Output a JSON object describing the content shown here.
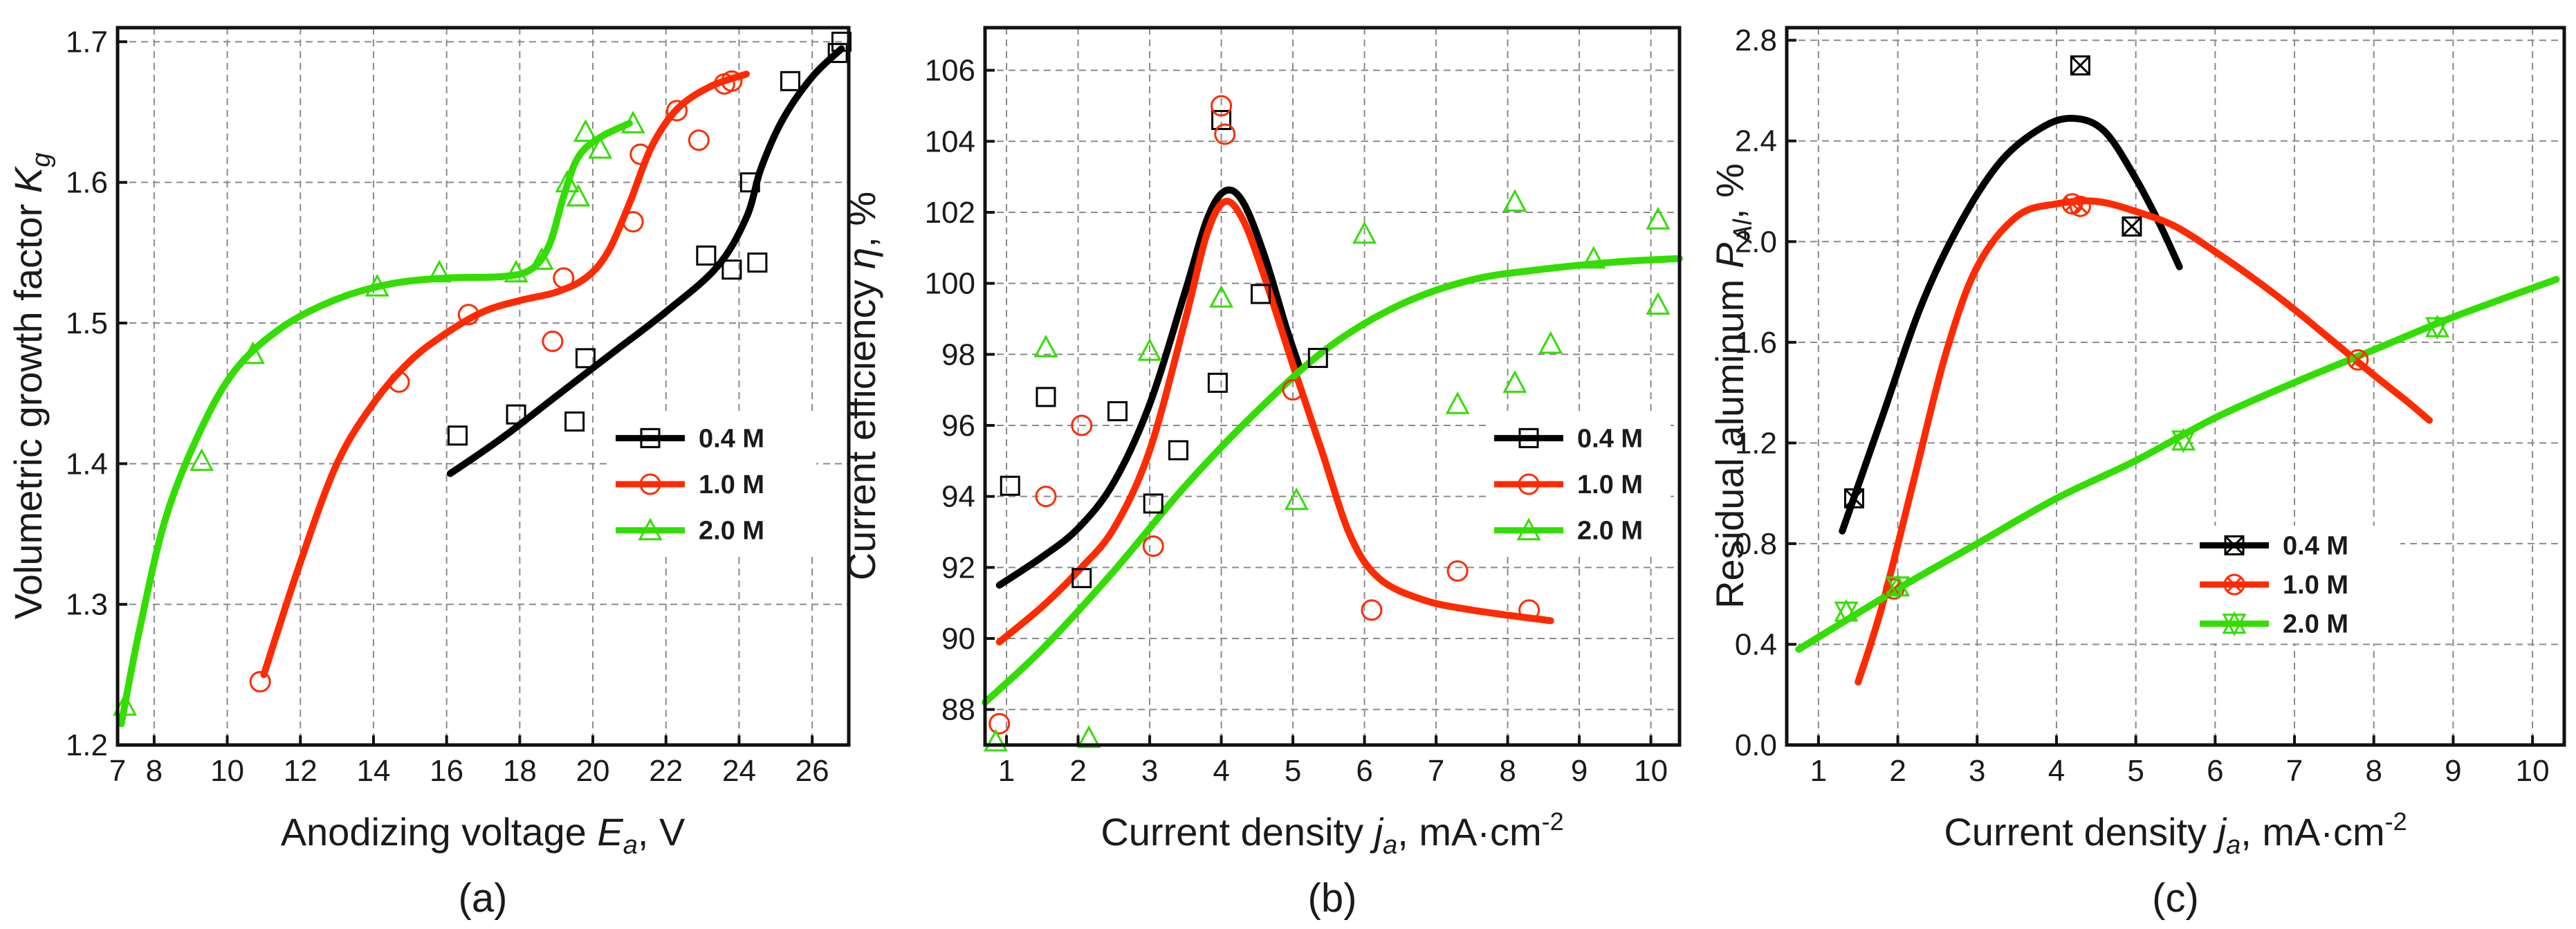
{
  "figure": {
    "captions": [
      "(a)",
      "(b)",
      "(c)"
    ]
  },
  "chart_data": [
    {
      "type": "scatter",
      "panel": "a",
      "caption": "(a)",
      "xlabel": {
        "text": "Anodizing voltage ",
        "var": "E",
        "sub": "a",
        "unit": ", V"
      },
      "ylabel": {
        "text": "Volumetric growth factor ",
        "var": "K",
        "sub": "g",
        "unit": ""
      },
      "xlim": [
        7,
        27
      ],
      "ylim": [
        1.2,
        1.71
      ],
      "xticks": [
        7,
        8,
        10,
        12,
        14,
        16,
        18,
        20,
        22,
        24,
        26
      ],
      "yticks": [
        1.2,
        1.3,
        1.4,
        1.5,
        1.6,
        1.7
      ],
      "ytick_decimals": 1,
      "grid": true,
      "legend_position": "center-right",
      "series": [
        {
          "name": "0.4 M",
          "color": "#000000",
          "marker": "square",
          "points": [
            [
              16.3,
              1.42
            ],
            [
              17.9,
              1.435
            ],
            [
              19.5,
              1.43
            ],
            [
              19.8,
              1.475
            ],
            [
              23.1,
              1.548
            ],
            [
              23.8,
              1.538
            ],
            [
              24.3,
              1.6
            ],
            [
              24.5,
              1.543
            ],
            [
              25.4,
              1.672
            ],
            [
              26.7,
              1.692
            ],
            [
              26.8,
              1.7
            ]
          ],
          "curve": [
            [
              16.1,
              1.393
            ],
            [
              17.5,
              1.418
            ],
            [
              19,
              1.448
            ],
            [
              20.5,
              1.478
            ],
            [
              22,
              1.508
            ],
            [
              23.4,
              1.54
            ],
            [
              24.2,
              1.575
            ],
            [
              24.6,
              1.61
            ],
            [
              25.2,
              1.645
            ],
            [
              26,
              1.675
            ],
            [
              26.8,
              1.695
            ]
          ]
        },
        {
          "name": "1.0 M",
          "color": "#ff2a00",
          "marker": "circle",
          "points": [
            [
              10.9,
              1.245
            ],
            [
              14.7,
              1.458
            ],
            [
              16.6,
              1.506
            ],
            [
              18.9,
              1.487
            ],
            [
              19.2,
              1.532
            ],
            [
              21.1,
              1.572
            ],
            [
              21.3,
              1.62
            ],
            [
              22.3,
              1.651
            ],
            [
              22.9,
              1.63
            ],
            [
              23.6,
              1.67
            ],
            [
              23.8,
              1.672
            ]
          ],
          "curve": [
            [
              11,
              1.25
            ],
            [
              12,
              1.33
            ],
            [
              13,
              1.4
            ],
            [
              14,
              1.443
            ],
            [
              15,
              1.473
            ],
            [
              16,
              1.493
            ],
            [
              17,
              1.508
            ],
            [
              18,
              1.516
            ],
            [
              19,
              1.522
            ],
            [
              19.8,
              1.532
            ],
            [
              20.4,
              1.55
            ],
            [
              21,
              1.585
            ],
            [
              21.6,
              1.625
            ],
            [
              22.3,
              1.652
            ],
            [
              23.2,
              1.668
            ],
            [
              24.2,
              1.677
            ]
          ]
        },
        {
          "name": "2.0 M",
          "color": "#33dd00",
          "marker": "triangle",
          "points": [
            [
              7.2,
              1.228
            ],
            [
              9.3,
              1.402
            ],
            [
              10.7,
              1.478
            ],
            [
              14.1,
              1.526
            ],
            [
              15.8,
              1.536
            ],
            [
              17.9,
              1.536
            ],
            [
              18.6,
              1.545
            ],
            [
              19.3,
              1.6
            ],
            [
              19.6,
              1.59
            ],
            [
              19.8,
              1.636
            ],
            [
              20.2,
              1.624
            ],
            [
              21.1,
              1.642
            ]
          ],
          "curve": [
            [
              7.1,
              1.215
            ],
            [
              7.6,
              1.282
            ],
            [
              8.3,
              1.36
            ],
            [
              9.2,
              1.42
            ],
            [
              10.2,
              1.466
            ],
            [
              11.5,
              1.497
            ],
            [
              13,
              1.517
            ],
            [
              14.5,
              1.528
            ],
            [
              16,
              1.532
            ],
            [
              17.5,
              1.533
            ],
            [
              18.3,
              1.538
            ],
            [
              18.8,
              1.555
            ],
            [
              19.2,
              1.59
            ],
            [
              19.6,
              1.618
            ],
            [
              20.2,
              1.632
            ],
            [
              21,
              1.642
            ]
          ]
        }
      ]
    },
    {
      "type": "scatter",
      "panel": "b",
      "caption": "(b)",
      "xlabel": {
        "text": "Current density ",
        "var": "j",
        "sub": "a",
        "unit": ", mA·cm",
        "sup": "-2"
      },
      "ylabel": {
        "text": "Current efficiency ",
        "var": "η",
        "sub": "",
        "unit": ", %"
      },
      "xlim": [
        0.7,
        10.4
      ],
      "ylim": [
        87,
        107.2
      ],
      "xticks": [
        1,
        2,
        3,
        4,
        5,
        6,
        7,
        8,
        9,
        10
      ],
      "yticks": [
        88,
        90,
        92,
        94,
        96,
        98,
        100,
        102,
        104,
        106
      ],
      "ytick_decimals": 0,
      "grid": true,
      "legend_position": "center-right",
      "series": [
        {
          "name": "0.4 M",
          "color": "#000000",
          "marker": "square",
          "points": [
            [
              1.05,
              94.3
            ],
            [
              1.55,
              96.8
            ],
            [
              2.05,
              91.7
            ],
            [
              2.55,
              96.4
            ],
            [
              3.05,
              93.8
            ],
            [
              3.4,
              95.3
            ],
            [
              3.95,
              97.2
            ],
            [
              4.0,
              104.6
            ],
            [
              4.55,
              99.7
            ],
            [
              5.35,
              97.9
            ]
          ],
          "curve": [
            [
              0.9,
              91.5
            ],
            [
              1.5,
              92.3
            ],
            [
              2,
              93.1
            ],
            [
              2.5,
              94.4
            ],
            [
              3,
              96.6
            ],
            [
              3.5,
              99.8
            ],
            [
              3.8,
              101.8
            ],
            [
              4.05,
              102.6
            ],
            [
              4.3,
              102.3
            ],
            [
              4.6,
              100.8
            ],
            [
              4.9,
              98.8
            ],
            [
              5.1,
              97.6
            ]
          ]
        },
        {
          "name": "1.0 M",
          "color": "#ff2a00",
          "marker": "circle",
          "points": [
            [
              0.9,
              87.6
            ],
            [
              1.55,
              94.0
            ],
            [
              2.05,
              96.0
            ],
            [
              3.05,
              92.6
            ],
            [
              4.0,
              105.0
            ],
            [
              4.05,
              104.2
            ],
            [
              5.0,
              97.0
            ],
            [
              6.1,
              90.8
            ],
            [
              7.3,
              91.9
            ],
            [
              8.3,
              90.8
            ]
          ],
          "curve": [
            [
              0.9,
              89.9
            ],
            [
              1.5,
              90.9
            ],
            [
              2,
              91.9
            ],
            [
              2.5,
              93.1
            ],
            [
              3,
              95.3
            ],
            [
              3.5,
              99
            ],
            [
              3.8,
              101.4
            ],
            [
              4.05,
              102.3
            ],
            [
              4.3,
              101.8
            ],
            [
              4.6,
              100.2
            ],
            [
              5,
              97.7
            ],
            [
              5.4,
              95.3
            ],
            [
              5.8,
              92.9
            ],
            [
              6.2,
              91.7
            ],
            [
              6.8,
              91.1
            ],
            [
              7.5,
              90.8
            ],
            [
              8.6,
              90.5
            ]
          ]
        },
        {
          "name": "2.0 M",
          "color": "#33dd00",
          "marker": "triangle",
          "points": [
            [
              0.85,
              87.1
            ],
            [
              1.55,
              98.2
            ],
            [
              2.15,
              87.2
            ],
            [
              3.0,
              98.1
            ],
            [
              4.0,
              99.6
            ],
            [
              5.05,
              93.9
            ],
            [
              6.0,
              101.4
            ],
            [
              7.3,
              96.6
            ],
            [
              8.1,
              97.2
            ],
            [
              8.1,
              102.3
            ],
            [
              8.6,
              98.3
            ],
            [
              9.2,
              100.7
            ],
            [
              10.1,
              99.4
            ],
            [
              10.1,
              101.8
            ]
          ],
          "curve": [
            [
              0.7,
              88.2
            ],
            [
              1.5,
              89.7
            ],
            [
              2.5,
              91.9
            ],
            [
              3.5,
              94.3
            ],
            [
              4.5,
              96.4
            ],
            [
              5.5,
              98.2
            ],
            [
              6.5,
              99.4
            ],
            [
              7.5,
              100.1
            ],
            [
              8.5,
              100.4
            ],
            [
              9.5,
              100.6
            ],
            [
              10.4,
              100.7
            ]
          ]
        }
      ]
    },
    {
      "type": "scatter",
      "panel": "c",
      "caption": "(c)",
      "xlabel": {
        "text": "Current density ",
        "var": "j",
        "sub": "a",
        "unit": ", mA·cm",
        "sup": "-2"
      },
      "ylabel": {
        "text": "Residual aluminum ",
        "var": "P",
        "sub": "Al",
        "unit": ", %"
      },
      "xlim": [
        0.6,
        10.4
      ],
      "ylim": [
        0,
        2.85
      ],
      "xticks": [
        1,
        2,
        3,
        4,
        5,
        6,
        7,
        8,
        9,
        10
      ],
      "yticks": [
        0.0,
        0.4,
        0.8,
        1.2,
        1.6,
        2.0,
        2.4,
        2.8
      ],
      "ytick_decimals": 1,
      "grid": true,
      "legend_position": "bottom-center",
      "series": [
        {
          "name": "0.4 M",
          "color": "#000000",
          "marker": "square-x",
          "points": [
            [
              1.45,
              0.98
            ],
            [
              4.3,
              2.7
            ],
            [
              4.95,
              2.06
            ]
          ],
          "curve": [
            [
              1.3,
              0.85
            ],
            [
              1.8,
              1.3
            ],
            [
              2.3,
              1.75
            ],
            [
              2.8,
              2.08
            ],
            [
              3.3,
              2.32
            ],
            [
              3.8,
              2.45
            ],
            [
              4.2,
              2.49
            ],
            [
              4.6,
              2.44
            ],
            [
              5,
              2.25
            ],
            [
              5.3,
              2.07
            ],
            [
              5.55,
              1.9
            ]
          ]
        },
        {
          "name": "1.0 M",
          "color": "#ff2a00",
          "marker": "circle-x",
          "points": [
            [
              1.95,
              0.62
            ],
            [
              4.2,
              2.15
            ],
            [
              4.3,
              2.14
            ],
            [
              7.8,
              1.53
            ]
          ],
          "curve": [
            [
              1.5,
              0.25
            ],
            [
              1.8,
              0.55
            ],
            [
              2.2,
              1.05
            ],
            [
              2.6,
              1.55
            ],
            [
              3,
              1.9
            ],
            [
              3.5,
              2.1
            ],
            [
              4,
              2.15
            ],
            [
              4.5,
              2.16
            ],
            [
              5,
              2.12
            ],
            [
              5.5,
              2.06
            ],
            [
              6,
              1.96
            ],
            [
              6.5,
              1.85
            ],
            [
              7,
              1.73
            ],
            [
              7.5,
              1.6
            ],
            [
              8,
              1.47
            ],
            [
              8.4,
              1.37
            ],
            [
              8.7,
              1.29
            ]
          ]
        },
        {
          "name": "2.0 M",
          "color": "#33dd00",
          "marker": "star",
          "points": [
            [
              1.35,
              0.53
            ],
            [
              2.0,
              0.63
            ],
            [
              5.6,
              1.21
            ],
            [
              8.8,
              1.66
            ]
          ],
          "curve": [
            [
              0.75,
              0.38
            ],
            [
              2,
              0.62
            ],
            [
              3,
              0.8
            ],
            [
              4,
              0.98
            ],
            [
              5,
              1.13
            ],
            [
              6,
              1.3
            ],
            [
              7,
              1.44
            ],
            [
              8,
              1.57
            ],
            [
              9,
              1.7
            ],
            [
              10.3,
              1.85
            ]
          ]
        }
      ]
    }
  ]
}
